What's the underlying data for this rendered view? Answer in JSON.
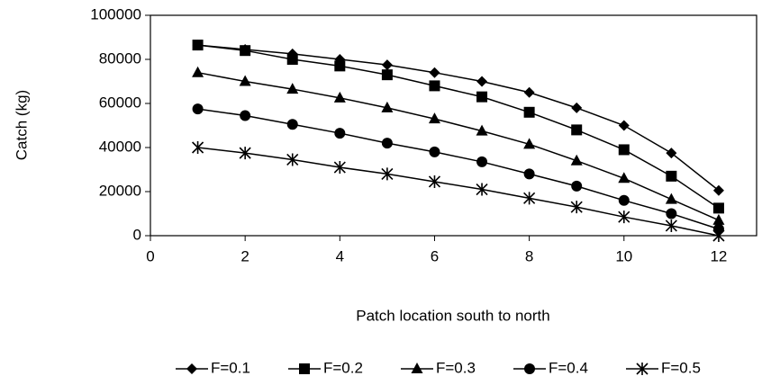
{
  "chart_data": {
    "type": "line",
    "xlabel": "Patch location south to north",
    "ylabel": "Catch (kg)",
    "x": [
      1,
      2,
      3,
      4,
      5,
      6,
      7,
      8,
      9,
      10,
      11,
      12
    ],
    "xlim": [
      0,
      12.8
    ],
    "xticks": [
      0,
      2,
      4,
      6,
      8,
      10,
      12
    ],
    "ylim": [
      0,
      100000
    ],
    "yticks": [
      0,
      20000,
      40000,
      60000,
      80000,
      100000
    ],
    "legend": "bottom",
    "series": [
      {
        "name": "F=0.1",
        "color": "#000000",
        "marker": "diamond",
        "values": [
          86500,
          84500,
          82500,
          80000,
          77500,
          74000,
          70000,
          65000,
          58000,
          50000,
          37500,
          20500
        ]
      },
      {
        "name": "F=0.2",
        "color": "#000000",
        "marker": "square",
        "values": [
          86500,
          84000,
          80000,
          77000,
          73000,
          68000,
          63000,
          56000,
          48000,
          39000,
          27000,
          12500
        ]
      },
      {
        "name": "F=0.3",
        "color": "#000000",
        "marker": "triangle",
        "values": [
          74000,
          70000,
          66500,
          62500,
          58000,
          53000,
          47500,
          41500,
          34000,
          26000,
          16500,
          7000
        ]
      },
      {
        "name": "F=0.4",
        "color": "#000000",
        "marker": "circle",
        "values": [
          57500,
          54500,
          50500,
          46500,
          42000,
          38000,
          33500,
          28000,
          22500,
          16000,
          10000,
          3000
        ]
      },
      {
        "name": "F=0.5",
        "color": "#000000",
        "marker": "star",
        "values": [
          40000,
          37500,
          34500,
          31000,
          28000,
          24500,
          21000,
          17000,
          13000,
          8500,
          4500,
          0
        ]
      }
    ]
  }
}
